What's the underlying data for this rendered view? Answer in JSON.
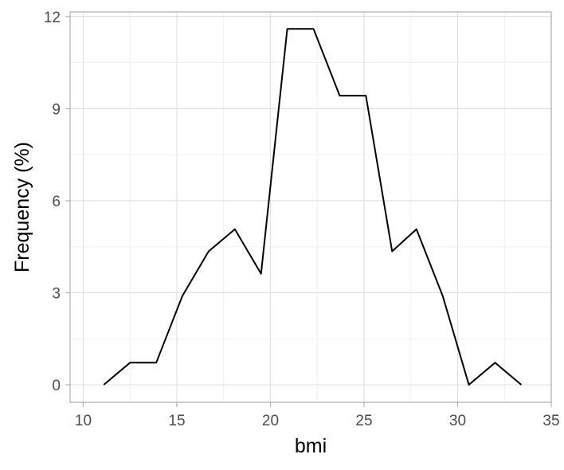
{
  "chart_data": {
    "type": "line",
    "title": "",
    "xlabel": "bmi",
    "ylabel": "Frequency (%)",
    "xlim": [
      9.3,
      35
    ],
    "ylim": [
      -0.57,
      12.15
    ],
    "x_ticks": [
      10,
      15,
      20,
      25,
      30,
      35
    ],
    "y_ticks": [
      0,
      3,
      6,
      9,
      12
    ],
    "grid": true,
    "legend": "none",
    "series": [
      {
        "color": "#000000",
        "x": [
          11.1,
          12.5,
          13.9,
          15.3,
          16.7,
          18.1,
          19.5,
          20.9,
          22.3,
          23.7,
          25.1,
          26.5,
          27.8,
          29.2,
          30.6,
          32.0,
          33.4
        ],
        "y": [
          0,
          0.72,
          0.72,
          2.9,
          4.35,
          5.07,
          3.62,
          11.6,
          11.6,
          9.42,
          9.42,
          4.35,
          5.07,
          2.9,
          0,
          0.72,
          0
        ]
      }
    ]
  }
}
